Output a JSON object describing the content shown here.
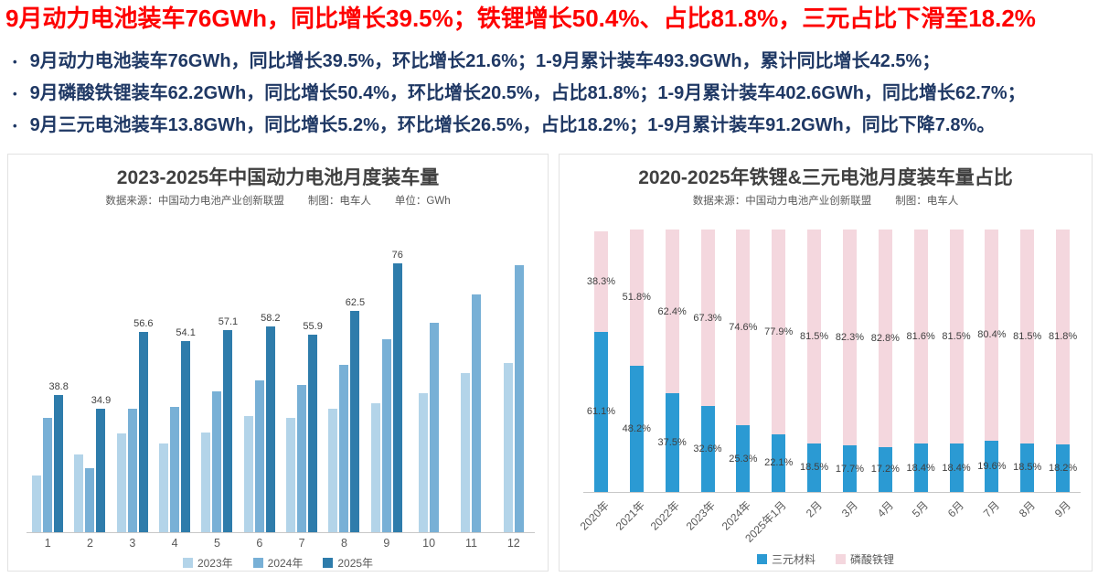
{
  "headline": "9月动力电池装车76GWh，同比增长39.5%；铁锂增长50.4%、占比81.8%，三元占比下滑至18.2%",
  "bullets": [
    "9月动力电池装车76GWh，同比增长39.5%，环比增长21.6%；1-9月累计装车493.9GWh，累计同比增长42.5%；",
    "9月磷酸铁锂装车62.2GWh，同比增长50.4%，环比增长20.5%，占比81.8%；1-9月累计装车402.6GWh，同比增长62.7%；",
    "9月三元电池装车13.8GWh，同比增长5.2%，环比增长26.5%，占比18.2%；1-9月累计装车91.2GWh，同比下降7.8%。"
  ],
  "chart_data": [
    {
      "type": "bar",
      "title": "2023-2025年中国动力电池月度装车量",
      "notes": {
        "source": "数据来源：中国动力电池产业创新联盟",
        "maker": "制图：电车人",
        "unit": "单位：GWh"
      },
      "categories": [
        "1",
        "2",
        "3",
        "4",
        "5",
        "6",
        "7",
        "8",
        "9",
        "10",
        "11",
        "12"
      ],
      "series": [
        {
          "name": "2023年",
          "color": "#b3d4e9",
          "show_labels": false,
          "values": [
            16.1,
            21.9,
            27.8,
            25.1,
            28.2,
            32.9,
            32.2,
            34.9,
            36.4,
            39.2,
            44.9,
            47.8
          ]
        },
        {
          "name": "2024年",
          "color": "#78b0d6",
          "show_labels": false,
          "values": [
            32.3,
            18.0,
            35.0,
            35.4,
            39.9,
            42.8,
            41.6,
            47.2,
            54.5,
            59.2,
            67.2,
            75.4
          ]
        },
        {
          "name": "2025年",
          "color": "#2e7cab",
          "show_labels": true,
          "values": [
            38.8,
            34.9,
            56.6,
            54.1,
            57.1,
            58.2,
            55.9,
            62.5,
            76,
            null,
            null,
            null
          ]
        }
      ],
      "ylabel": "GWh",
      "ylim": [
        0,
        85
      ],
      "grid": false,
      "legend_position": "bottom"
    },
    {
      "type": "bar",
      "stacked": true,
      "title": "2020-2025年铁锂&三元电池月度装车量占比",
      "notes": {
        "source": "数据来源：中国动力电池产业创新联盟",
        "maker": "制图：电车人"
      },
      "categories": [
        "2020年",
        "2021年",
        "2022年",
        "2023年",
        "2024年",
        "2025年1月",
        "2月",
        "3月",
        "4月",
        "5月",
        "6月",
        "7月",
        "8月",
        "9月"
      ],
      "series": [
        {
          "name": "三元材料",
          "color": "#2b9ad3",
          "unit": "%",
          "values": [
            61.1,
            48.2,
            37.5,
            32.6,
            25.3,
            22.1,
            18.5,
            17.7,
            17.2,
            18.4,
            18.4,
            19.6,
            18.5,
            18.2
          ]
        },
        {
          "name": "磷酸铁锂",
          "color": "#f4d7de",
          "unit": "%",
          "values": [
            38.3,
            51.8,
            62.4,
            67.3,
            74.6,
            77.9,
            81.5,
            82.3,
            82.8,
            81.6,
            81.5,
            80.4,
            81.5,
            81.8
          ]
        }
      ],
      "ylim": [
        0,
        100
      ],
      "grid": false,
      "legend_position": "bottom"
    }
  ]
}
